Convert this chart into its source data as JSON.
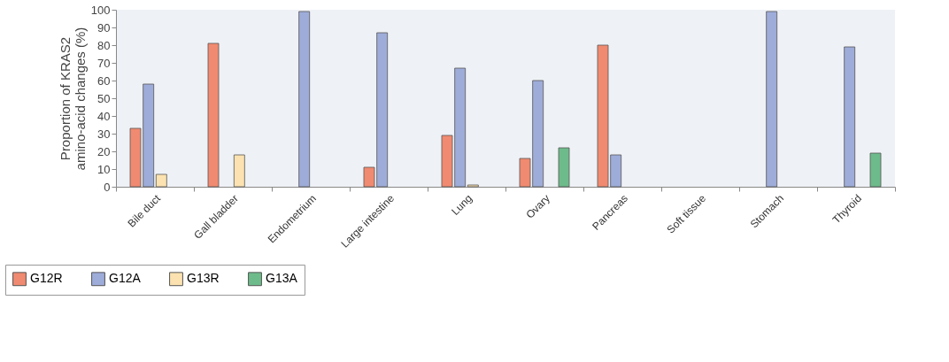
{
  "chart_data": {
    "type": "bar",
    "ylabel": "Proportion of KRAS2\namino-acid changes (%)",
    "categories": [
      "Bile duct",
      "Gall bladder",
      "Endometrium",
      "Large intestine",
      "Lung",
      "Ovary",
      "Pancreas",
      "Soft tissue",
      "Stomach",
      "Thyroid"
    ],
    "series": [
      {
        "name": "G12R",
        "color": "#f08a70",
        "values": [
          33,
          81,
          null,
          11,
          29,
          16,
          80,
          null,
          null,
          null
        ]
      },
      {
        "name": "G12A",
        "color": "#9eacd9",
        "values": [
          58,
          null,
          99,
          87,
          67,
          60,
          18,
          null,
          99,
          79
        ]
      },
      {
        "name": "G13R",
        "color": "#fbe2b0",
        "values": [
          7,
          18,
          null,
          null,
          1,
          null,
          null,
          null,
          null,
          null
        ]
      },
      {
        "name": "G13A",
        "color": "#6dbb8a",
        "values": [
          null,
          null,
          null,
          null,
          null,
          22,
          null,
          null,
          null,
          19
        ]
      }
    ],
    "ylim": [
      0,
      100
    ],
    "yticks": [
      0,
      10,
      20,
      30,
      40,
      50,
      60,
      70,
      80,
      90,
      100
    ],
    "grid": false,
    "legend": "bottom left"
  }
}
